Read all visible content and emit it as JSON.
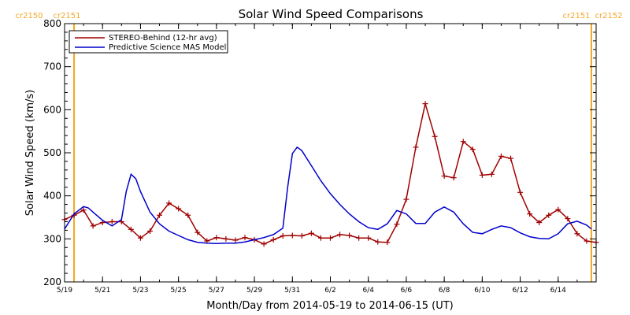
{
  "chart_data": {
    "type": "line",
    "title": "Solar Wind Speed Comparisons",
    "xlabel": "Month/Day from 2014-05-19 to 2014-06-15 (UT)",
    "ylabel": "Solar Wind Speed (km/s)",
    "xlim": [
      "2014-05-19",
      "2014-06-16"
    ],
    "ylim": [
      200,
      800
    ],
    "x_tick_labels": [
      "5/19",
      "5/21",
      "5/23",
      "5/25",
      "5/27",
      "5/29",
      "5/31",
      "6/2",
      "6/4",
      "6/6",
      "6/8",
      "6/10",
      "6/12",
      "6/14"
    ],
    "x_ticks": [
      "2014-05-19",
      "2014-05-21",
      "2014-05-23",
      "2014-05-25",
      "2014-05-27",
      "2014-05-29",
      "2014-05-31",
      "2014-06-02",
      "2014-06-04",
      "2014-06-06",
      "2014-06-08",
      "2014-06-10",
      "2014-06-12",
      "2014-06-14"
    ],
    "y_ticks": [
      200,
      300,
      400,
      500,
      600,
      700,
      800
    ],
    "grid": false,
    "legend_position": "top-left",
    "carrington_markers": [
      {
        "date": "2014-05-19 12:00",
        "label_left": "cr2150",
        "label_right": "cr2151",
        "side": "left"
      },
      {
        "date": "2014-06-15 18:00",
        "label_left": "cr2151",
        "label_right": "cr2152",
        "side": "right"
      }
    ],
    "marker_color": "#f5a623",
    "series": [
      {
        "name": "STEREO-Behind (12-hr avg)",
        "color": "#a00000",
        "marker": "plus",
        "x": [
          "2014-05-19 00:00",
          "2014-05-19 12:00",
          "2014-05-20 00:00",
          "2014-05-20 12:00",
          "2014-05-21 00:00",
          "2014-05-21 12:00",
          "2014-05-22 00:00",
          "2014-05-22 12:00",
          "2014-05-23 00:00",
          "2014-05-23 12:00",
          "2014-05-24 00:00",
          "2014-05-24 12:00",
          "2014-05-25 00:00",
          "2014-05-25 12:00",
          "2014-05-26 00:00",
          "2014-05-26 12:00",
          "2014-05-27 00:00",
          "2014-05-27 12:00",
          "2014-05-28 00:00",
          "2014-05-28 12:00",
          "2014-05-29 00:00",
          "2014-05-29 12:00",
          "2014-05-30 00:00",
          "2014-05-30 12:00",
          "2014-05-31 00:00",
          "2014-05-31 12:00",
          "2014-06-01 00:00",
          "2014-06-01 12:00",
          "2014-06-02 00:00",
          "2014-06-02 12:00",
          "2014-06-03 00:00",
          "2014-06-03 12:00",
          "2014-06-04 00:00",
          "2014-06-04 12:00",
          "2014-06-05 00:00",
          "2014-06-05 12:00",
          "2014-06-06 00:00",
          "2014-06-06 12:00",
          "2014-06-07 00:00",
          "2014-06-07 12:00",
          "2014-06-08 00:00",
          "2014-06-08 12:00",
          "2014-06-09 00:00",
          "2014-06-09 12:00",
          "2014-06-10 00:00",
          "2014-06-10 12:00",
          "2014-06-11 00:00",
          "2014-06-11 12:00",
          "2014-06-12 00:00",
          "2014-06-12 12:00",
          "2014-06-13 00:00",
          "2014-06-13 12:00",
          "2014-06-14 00:00",
          "2014-06-14 12:00",
          "2014-06-15 00:00",
          "2014-06-15 12:00",
          "2014-06-16 00:00"
        ],
        "y": [
          345,
          355,
          367,
          330,
          338,
          340,
          340,
          322,
          302,
          318,
          355,
          383,
          370,
          355,
          315,
          295,
          303,
          300,
          297,
          303,
          298,
          288,
          298,
          307,
          308,
          307,
          313,
          302,
          302,
          310,
          308,
          302,
          302,
          293,
          292,
          334,
          392,
          513,
          614,
          538,
          446,
          442,
          526,
          508,
          448,
          450,
          492,
          487,
          408,
          358,
          338,
          355,
          368,
          347,
          312,
          295,
          292
        ]
      },
      {
        "name": "Predictive Science MAS Model",
        "color": "#0000cc",
        "marker": "none",
        "x": [
          "2014-05-19 00:00",
          "2014-05-19 12:00",
          "2014-05-20 00:00",
          "2014-05-20 06:00",
          "2014-05-20 12:00",
          "2014-05-21 00:00",
          "2014-05-21 12:00",
          "2014-05-22 00:00",
          "2014-05-22 06:00",
          "2014-05-22 12:00",
          "2014-05-22 18:00",
          "2014-05-23 00:00",
          "2014-05-23 12:00",
          "2014-05-24 00:00",
          "2014-05-24 12:00",
          "2014-05-25 00:00",
          "2014-05-25 12:00",
          "2014-05-26 00:00",
          "2014-05-26 12:00",
          "2014-05-27 00:00",
          "2014-05-27 12:00",
          "2014-05-28 00:00",
          "2014-05-28 12:00",
          "2014-05-29 00:00",
          "2014-05-29 12:00",
          "2014-05-30 00:00",
          "2014-05-30 12:00",
          "2014-05-30 18:00",
          "2014-05-31 00:00",
          "2014-05-31 06:00",
          "2014-05-31 12:00",
          "2014-06-01 00:00",
          "2014-06-01 12:00",
          "2014-06-02 00:00",
          "2014-06-02 12:00",
          "2014-06-03 00:00",
          "2014-06-03 12:00",
          "2014-06-04 00:00",
          "2014-06-04 12:00",
          "2014-06-05 00:00",
          "2014-06-05 12:00",
          "2014-06-06 00:00",
          "2014-06-06 12:00",
          "2014-06-07 00:00",
          "2014-06-07 12:00",
          "2014-06-08 00:00",
          "2014-06-08 12:00",
          "2014-06-09 00:00",
          "2014-06-09 12:00",
          "2014-06-10 00:00",
          "2014-06-10 12:00",
          "2014-06-11 00:00",
          "2014-06-11 12:00",
          "2014-06-12 00:00",
          "2014-06-12 12:00",
          "2014-06-13 00:00",
          "2014-06-13 12:00",
          "2014-06-14 00:00",
          "2014-06-14 12:00",
          "2014-06-15 00:00",
          "2014-06-15 12:00",
          "2014-06-15 18:00"
        ],
        "y": [
          323,
          358,
          375,
          372,
          362,
          343,
          330,
          345,
          410,
          450,
          440,
          410,
          362,
          335,
          318,
          308,
          298,
          292,
          290,
          289,
          290,
          290,
          293,
          298,
          303,
          310,
          325,
          420,
          498,
          513,
          505,
          470,
          435,
          405,
          380,
          358,
          340,
          326,
          322,
          335,
          366,
          358,
          336,
          336,
          362,
          374,
          362,
          335,
          315,
          312,
          322,
          330,
          326,
          314,
          305,
          301,
          300,
          312,
          335,
          341,
          332,
          323
        ]
      }
    ]
  }
}
